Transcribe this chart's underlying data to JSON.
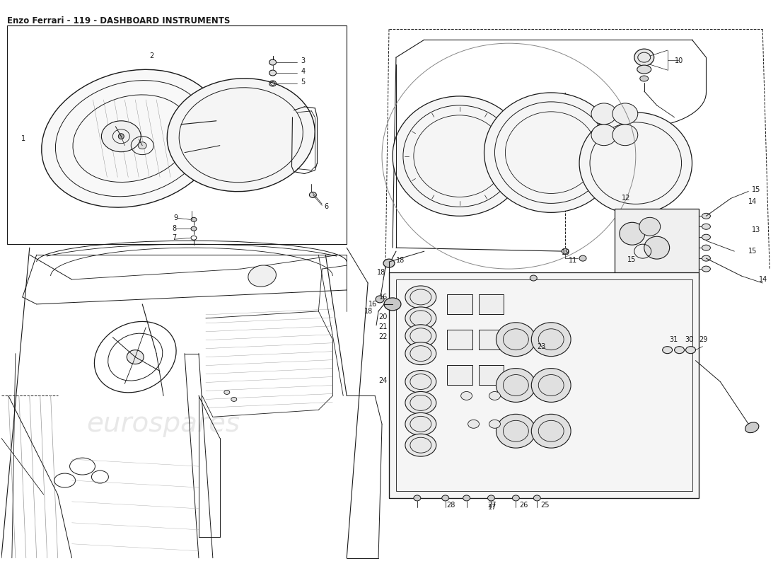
{
  "title": "Enzo Ferrari - 119 - DASHBOARD INSTRUMENTS",
  "title_fontsize": 8.5,
  "bg_color": "#ffffff",
  "line_color": "#1a1a1a",
  "watermark_text": "eurospares",
  "watermark_color": "#cccccc",
  "fig_width": 11.0,
  "fig_height": 8.0,
  "dpi": 100,
  "label_fs": 7.0
}
